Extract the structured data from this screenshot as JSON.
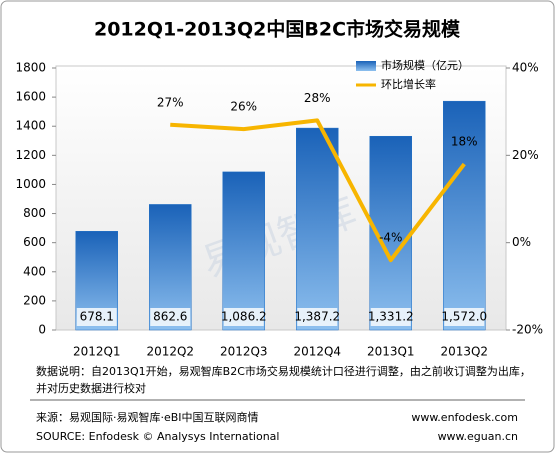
{
  "chart_data": {
    "type": "bar",
    "title": "2012Q1-2013Q2中国B2C市场交易规模",
    "categories": [
      "2012Q1",
      "2012Q2",
      "2012Q3",
      "2012Q4",
      "2013Q1",
      "2013Q2"
    ],
    "series": [
      {
        "name": "市场规模（亿元）",
        "type": "bar",
        "color": "#1f6fc5",
        "values": [
          678.1,
          862.6,
          1086.2,
          1387.2,
          1331.2,
          1572.0
        ],
        "value_labels": [
          "678.1",
          "862.6",
          "1,086.2",
          "1,387.2",
          "1,331.2",
          "1,572.0"
        ]
      },
      {
        "name": "环比增长率",
        "type": "line",
        "axis": "y2",
        "color": "#f7b500",
        "values": [
          null,
          27,
          26,
          28,
          -4,
          18
        ],
        "value_labels": [
          null,
          "27%",
          "26%",
          "28%",
          "-4%",
          "18%"
        ]
      }
    ],
    "ylim": [
      0,
      1800
    ],
    "yticks": [
      0,
      200,
      400,
      600,
      800,
      1000,
      1200,
      1400,
      1600,
      1800
    ],
    "y2lim": [
      -20,
      40
    ],
    "y2ticks": [
      {
        "value": -20,
        "label": "-20%"
      },
      {
        "value": 0,
        "label": "0%"
      },
      {
        "value": 20,
        "label": "20%"
      },
      {
        "value": 40,
        "label": "40%"
      }
    ],
    "legend": "top-right",
    "watermark": "易观智库",
    "notes": [
      "数据说明：自2013Q1开始，易观智库B2C市场交易规模统计口径进行调整，由之前收订调整为出库，",
      "并对历史数据进行校对"
    ],
    "source": "来源：易观国际·易观智库·eBI中国互联网商情",
    "source_en": "SOURCE: Enfodesk © Analysys International",
    "websites": [
      "www.enfodesk.com",
      "www.eguan.cn"
    ]
  }
}
